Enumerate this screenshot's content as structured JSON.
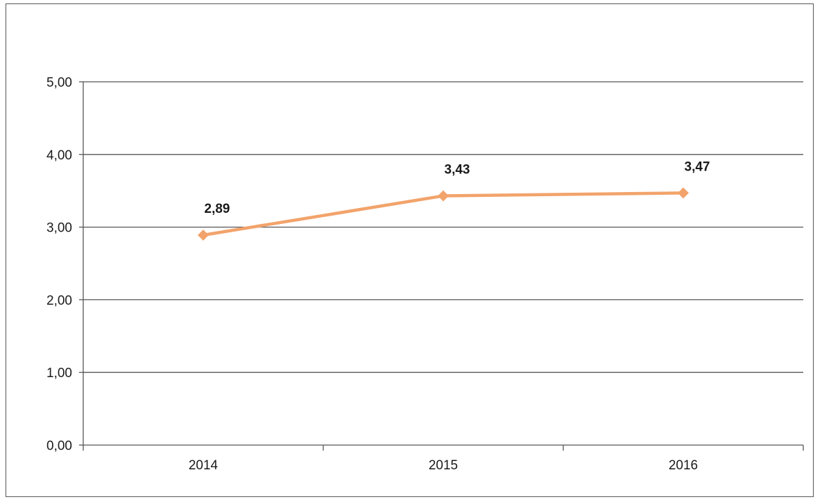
{
  "chart_data": {
    "type": "line",
    "title": "",
    "xlabel": "",
    "ylabel": "",
    "categories": [
      "2014",
      "2015",
      "2016"
    ],
    "series": [
      {
        "values": [
          2.89,
          3.43,
          3.47
        ],
        "data_labels": [
          "2,89",
          "3,43",
          "3,47"
        ],
        "color": "#f2a36b",
        "marker": "diamond"
      }
    ],
    "ylim": [
      0,
      5
    ],
    "y_ticks": [
      0,
      1,
      2,
      3,
      4,
      5
    ],
    "y_tick_labels": [
      "0,00",
      "1,00",
      "2,00",
      "3,00",
      "4,00",
      "5,00"
    ],
    "grid": true,
    "legend": "none",
    "axis_color": "#555555",
    "grid_color": "#555555"
  }
}
